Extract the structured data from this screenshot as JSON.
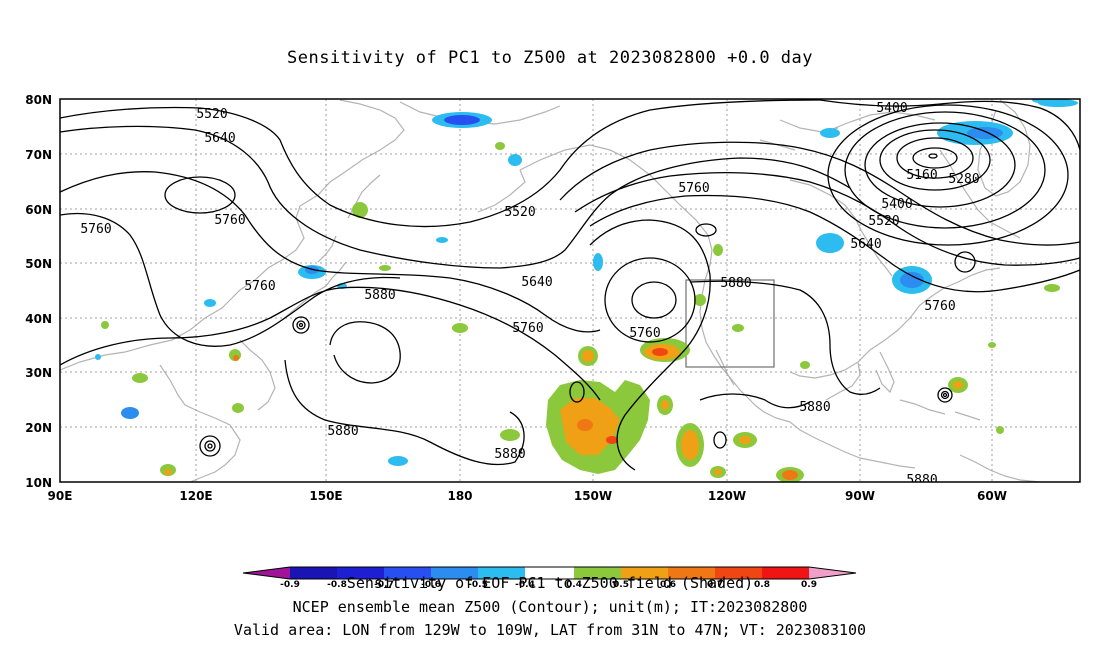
{
  "title": "Sensitivity of PC1 to Z500 at 2023082800 +0.0 day",
  "lat_labels": [
    "80N",
    "70N",
    "60N",
    "50N",
    "40N",
    "30N",
    "20N",
    "10N"
  ],
  "lon_labels": [
    "90E",
    "120E",
    "150E",
    "180",
    "150W",
    "120W",
    "90W",
    "60W"
  ],
  "contour_labels": [
    "5520",
    "5640",
    "5760",
    "5760",
    "5760",
    "5880",
    "5640",
    "5520",
    "5760",
    "5760",
    "5760",
    "5880",
    "5880",
    "5880",
    "5880",
    "5400",
    "5160",
    "5280",
    "5400",
    "5520",
    "5640",
    "5760",
    "5880"
  ],
  "colorbar": {
    "ticks": [
      "-0.9",
      "-0.8",
      "-0.7",
      "-0.6",
      "-0.5",
      "-0.4",
      "0.4",
      "0.5",
      "0.6",
      "0.7",
      "0.8",
      "0.9"
    ],
    "colors": [
      "#a0149a",
      "#1a14b4",
      "#1e1ed2",
      "#2850f0",
      "#2c8cf0",
      "#2dbcf0",
      "#ffffff",
      "#8cc83c",
      "#f0a014",
      "#f07814",
      "#f04614",
      "#f01414",
      "#f0a0c8"
    ]
  },
  "footer": {
    "caption": "Sensitivity of EOF PC1 to Z500 field (Shaded)",
    "line2": "NCEP ensemble mean Z500 (Contour); unit(m); IT:2023082800",
    "line3": "Valid area: LON from 129W to 109W, LAT from 31N to 47N; VT: 2023083100"
  },
  "colors": {
    "contour": "#000000",
    "coastline": "#b4b4b4",
    "grid": "#a0a0a0",
    "negative": "#2c8cf0",
    "positive_low": "#8cc83c",
    "positive_mid": "#f0a014",
    "positive_high": "#f04614"
  }
}
